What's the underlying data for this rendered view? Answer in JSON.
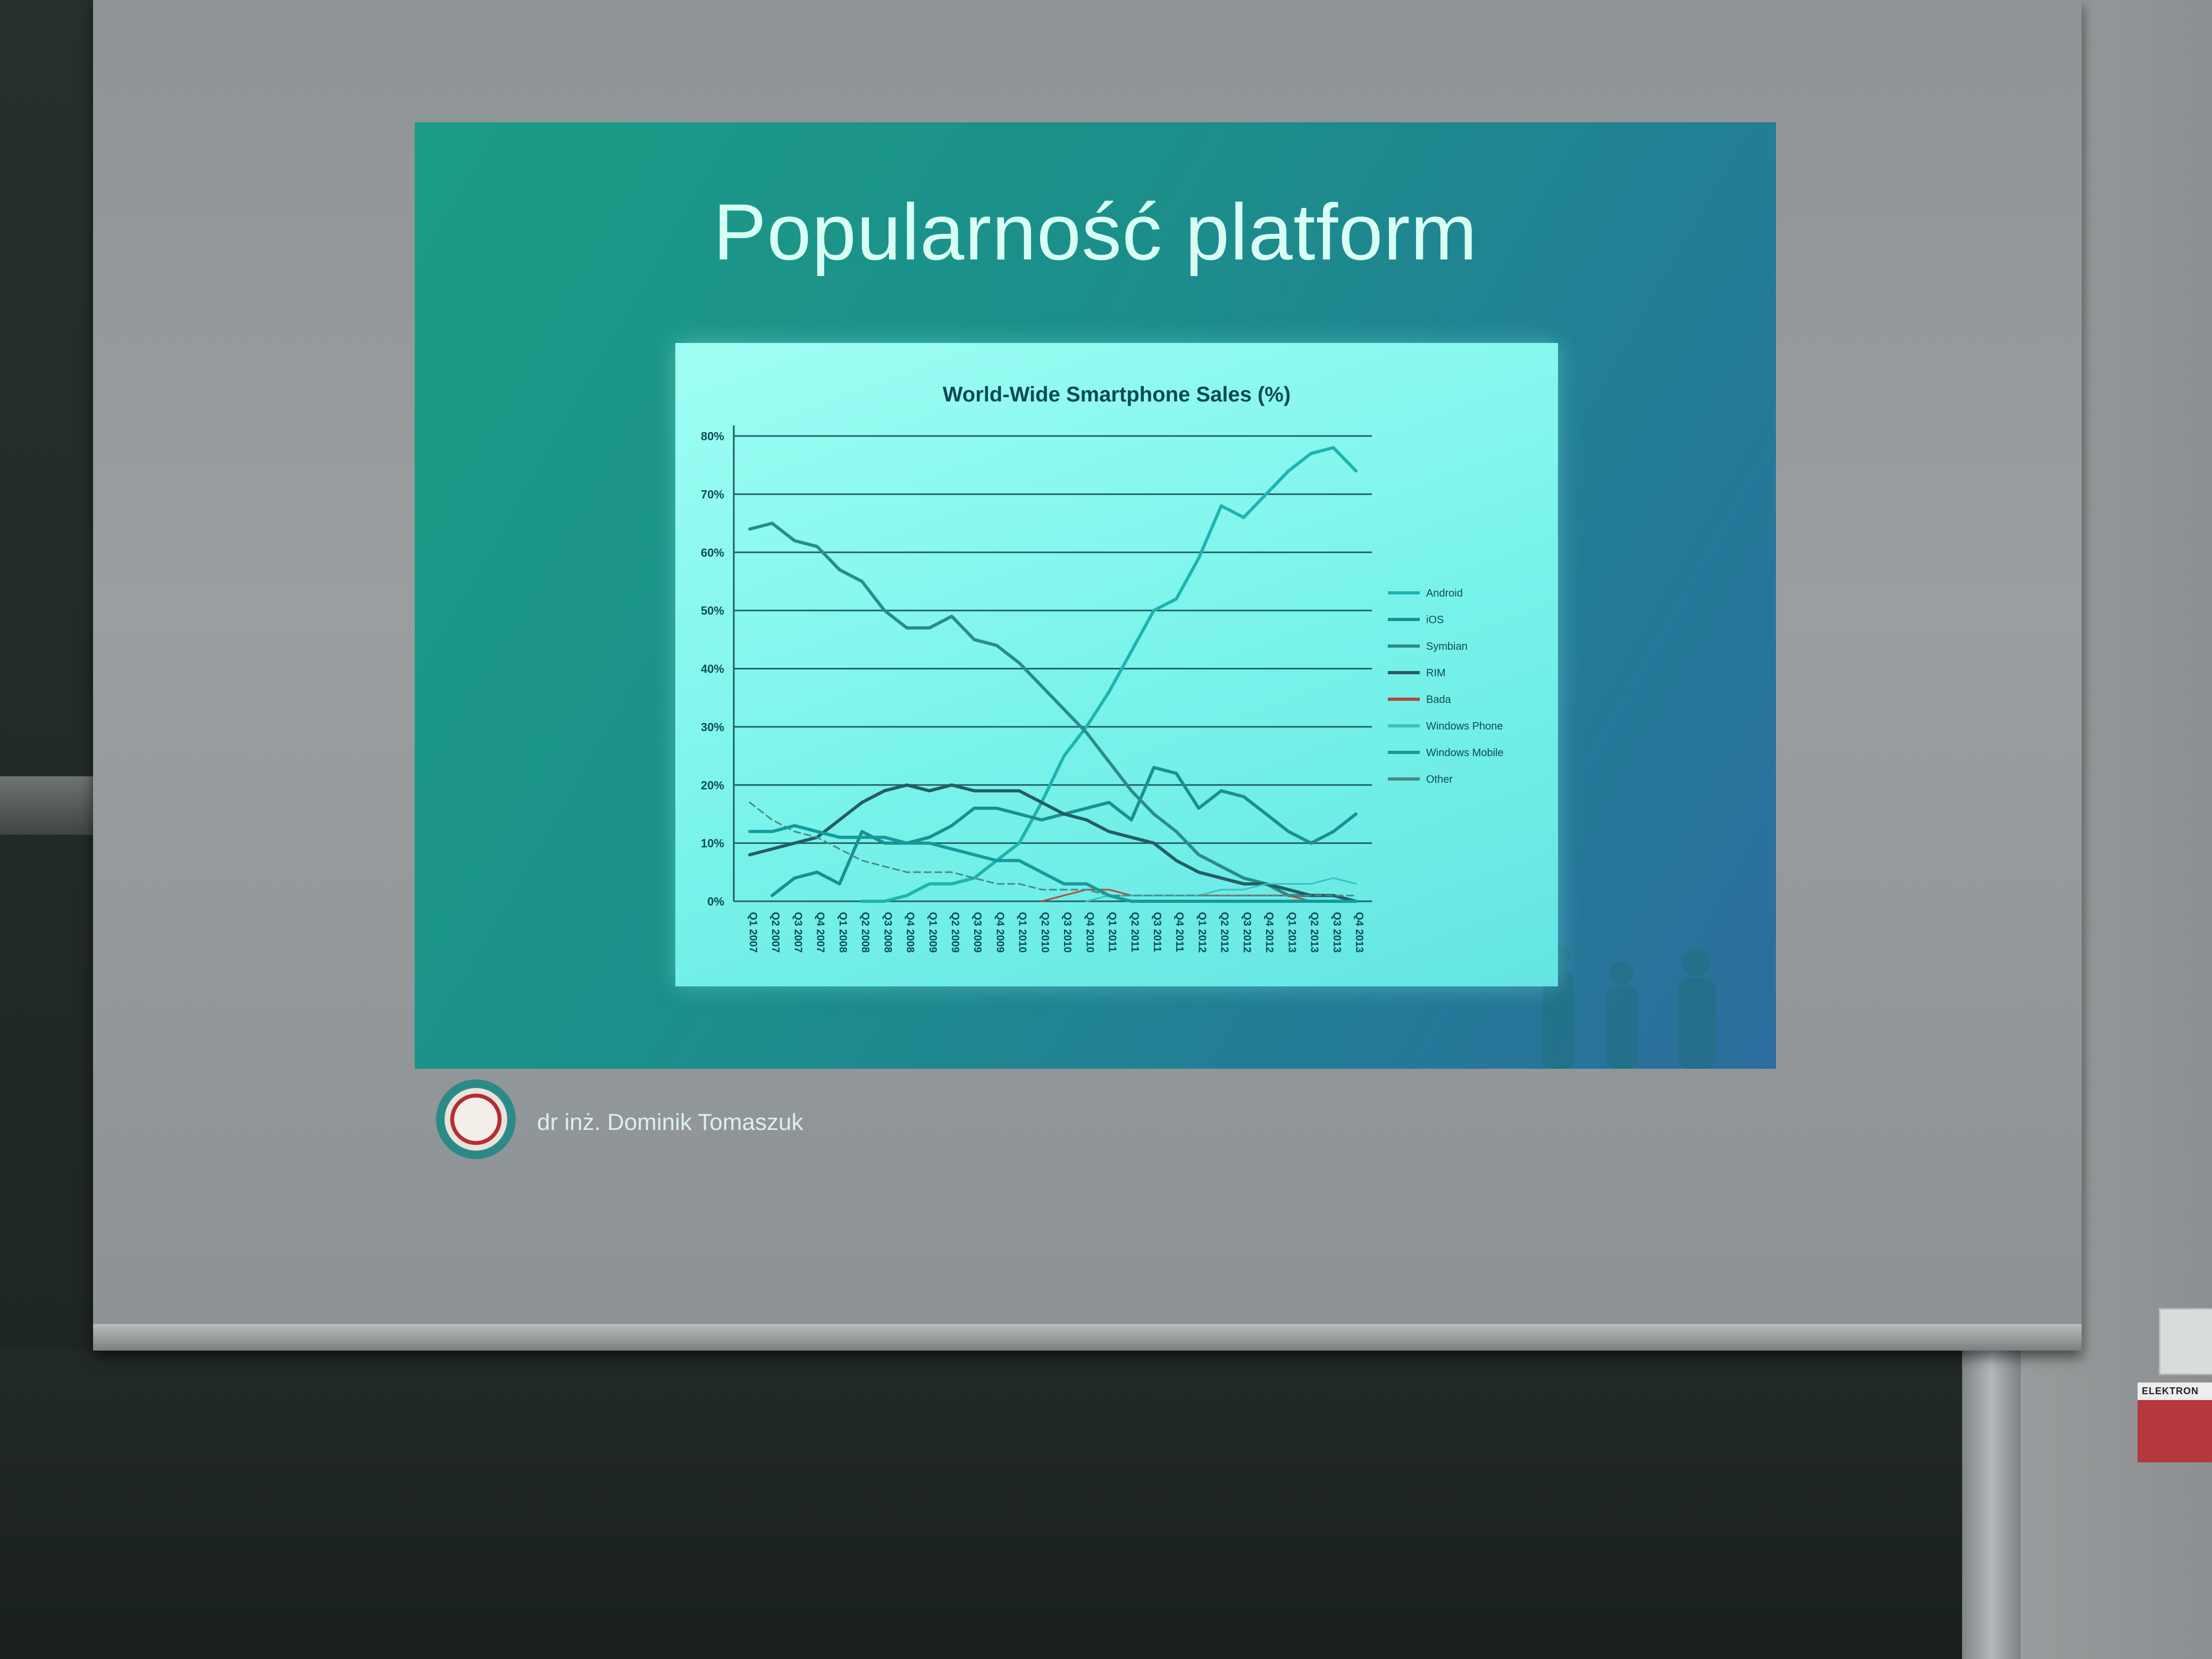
{
  "slide": {
    "title": "Popularność platform",
    "author": "dr inż. Dominik Tomaszuk"
  },
  "wall_label": "ELEKTRON",
  "chart_data": {
    "type": "line",
    "title": "World-Wide Smartphone Sales (%)",
    "xlabel": "",
    "ylabel": "",
    "ylim": [
      0,
      80
    ],
    "y_ticks": [
      "0%",
      "10%",
      "20%",
      "30%",
      "40%",
      "50%",
      "60%",
      "70%",
      "80%"
    ],
    "categories": [
      "Q1 2007",
      "Q2 2007",
      "Q3 2007",
      "Q4 2007",
      "Q1 2008",
      "Q2 2008",
      "Q3 2008",
      "Q4 2008",
      "Q1 2009",
      "Q2 2009",
      "Q3 2009",
      "Q4 2009",
      "Q1 2010",
      "Q2 2010",
      "Q3 2010",
      "Q4 2010",
      "Q1 2011",
      "Q2 2011",
      "Q3 2011",
      "Q4 2011",
      "Q1 2012",
      "Q2 2012",
      "Q3 2012",
      "Q4 2012",
      "Q1 2013",
      "Q2 2013",
      "Q3 2013",
      "Q4 2013"
    ],
    "grid": true,
    "legend_position": "right",
    "series": [
      {
        "name": "Android",
        "color": "#1fb3b0",
        "values": [
          null,
          null,
          null,
          null,
          null,
          0,
          0,
          1,
          3,
          3,
          4,
          7,
          10,
          17,
          25,
          30,
          36,
          43,
          50,
          52,
          59,
          68,
          66,
          70,
          74,
          77,
          78,
          74
        ]
      },
      {
        "name": "iOS",
        "color": "#1b8f92",
        "values": [
          null,
          1,
          4,
          5,
          3,
          12,
          10,
          10,
          11,
          13,
          16,
          16,
          15,
          14,
          15,
          16,
          17,
          14,
          23,
          22,
          16,
          19,
          18,
          15,
          12,
          10,
          12,
          15
        ]
      },
      {
        "name": "Symbian",
        "color": "#2a8c8a",
        "values": [
          64,
          65,
          62,
          61,
          57,
          55,
          50,
          47,
          47,
          49,
          45,
          44,
          41,
          37,
          33,
          29,
          24,
          19,
          15,
          12,
          8,
          6,
          4,
          3,
          1,
          1,
          1,
          0
        ]
      },
      {
        "name": "RIM",
        "color": "#235e63",
        "values": [
          8,
          9,
          10,
          11,
          14,
          17,
          19,
          20,
          19,
          20,
          19,
          19,
          19,
          17,
          15,
          14,
          12,
          11,
          10,
          7,
          5,
          4,
          3,
          3,
          2,
          1,
          1,
          0
        ]
      },
      {
        "name": "Bada",
        "color": "#b24a3a",
        "values": [
          null,
          null,
          null,
          null,
          null,
          null,
          null,
          null,
          null,
          null,
          null,
          null,
          null,
          0,
          1,
          2,
          2,
          1,
          1,
          1,
          1,
          1,
          1,
          1,
          1,
          0,
          0,
          0
        ]
      },
      {
        "name": "Windows Phone",
        "color": "#3bbfc2",
        "values": [
          null,
          null,
          null,
          null,
          null,
          null,
          null,
          null,
          null,
          null,
          null,
          null,
          null,
          null,
          null,
          0,
          1,
          1,
          1,
          1,
          1,
          2,
          2,
          3,
          3,
          3,
          4,
          3
        ]
      },
      {
        "name": "Windows Mobile",
        "color": "#169a9c",
        "values": [
          12,
          12,
          13,
          12,
          11,
          11,
          11,
          10,
          10,
          9,
          8,
          7,
          7,
          5,
          3,
          3,
          1,
          0,
          0,
          0,
          0,
          0,
          0,
          0,
          0,
          0,
          0,
          0
        ]
      },
      {
        "name": "Other",
        "color": "#4a8a88",
        "values": [
          17,
          14,
          12,
          11,
          9,
          7,
          6,
          5,
          5,
          5,
          4,
          3,
          3,
          2,
          2,
          2,
          1,
          1,
          1,
          1,
          1,
          1,
          1,
          1,
          1,
          1,
          1,
          1
        ]
      }
    ]
  }
}
